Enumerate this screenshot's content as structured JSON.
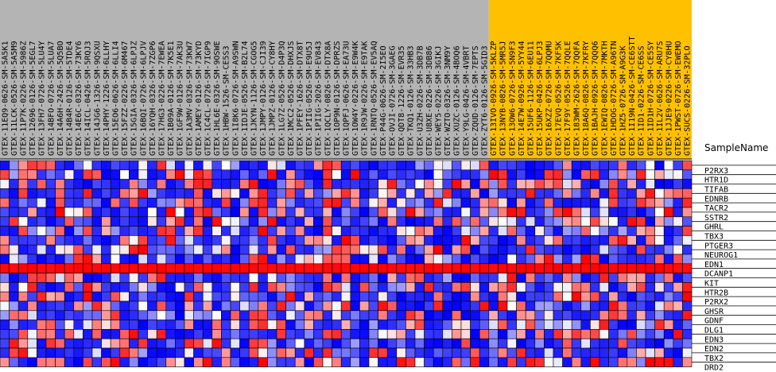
{
  "chart_data": {
    "type": "heatmap",
    "axis_title": "SampleName",
    "colors": {
      "low": "#0000ff",
      "mid": "#ffffff",
      "high": "#ff0000",
      "group1_bg": "#b4b4b4",
      "group2_bg": "#ffc000",
      "grid": "#000000"
    },
    "samples": [
      "GTEX-11EQ9-0626-SM-5A5K1",
      "GTEX-11LCK-0526-SM-5A5M9",
      "GTEX-11P7K-0226-SM-5986Z",
      "GTEX-12696-0126-SM-5EGL7",
      "GTEX-13FH7-0726-SM-5LU4Y",
      "GTEX-14BFO-0726-SM-5LUA7",
      "GTEX-14A6H-2426-SM-5Q5BO",
      "GTEX-14B4R-0126-SM-5TDE4",
      "GTEX-14E6C-0326-SM-73KY6",
      "GTEX-14ICL-0426-SM-5RQJ3",
      "GTEX-14JG6-1326-SM-9QSXU",
      "GTEX-14PHY-1226-SM-6LLHY",
      "GTEX-15EO6-0626-SM-6LLI4",
      "GTEX-15FZZ-0226-SM-6M467",
      "GTEX-15GIA-0326-SM-6LPJZ",
      "GTEX-16BQI-0726-SM-6LPJV",
      "GTEX-16YQH-0326-SM-7ZGP6",
      "GTEX-17HG3-0226-SM-7EWEA",
      "GTEX-1B09A-0126-SM-7K5E1",
      "GTEX-1GF9W-0126-SM-7AK3U",
      "GTEX-1A3MV-0326-SM-73KW7",
      "GTEX-1AMEY-0126-SM-73KYD",
      "GTEX-1C4CL-0726-SM-7IGP9",
      "GTEX-1HL6E-0326-SM-9OSWE",
      "GTEX-1HBW-1526-SM-CE5S3",
      "GTEX-1I8K6-0726-SM-A9SWN",
      "GTEX-1IDJE-0526-SM-B2L74",
      "GTEX-1JKYN-1126-SM-CGOG5",
      "GTEX-1JMPY-0126-SM-CJI39",
      "GTEX-1JMPZ-0126-SM-CY8HY",
      "GTEX-1LG7Z-0526-SM-D4P3Q",
      "GTEX-1MCC2-0526-SM-DHXJS",
      "GTEX-1PFEY-1626-SM-DTX8T",
      "GTEX-1PIIG-0526-SM-E9U5J",
      "GTEX-1PIIG-2026-SM-EV843",
      "GTEX-1QCLY-0826-SM-DTX8A",
      "GTEX-1OP9N-0126-SM-DPRZS",
      "GTEX-1QPFJ-0626-SM-EA73U",
      "GTEX-1OW4Y-0226-SM-E9W4K",
      "GTEX-1R9JW-0226-SM-E9TAK",
      "GTEX-1RNTQ-0526-SM-EV5AQ",
      "GTEX-P44G-0626-SM-2I5EO",
      "GTEX-OVJI-0726-SM-3GAEG",
      "GTEX-QDT8-1226-SM-EVR35",
      "GTEX-TKQ1-0126-SM-33HB3",
      "GTEX-U3ZH-0226-SM-3DB7B",
      "GTEX-U8XE-0226-SM-3DB86",
      "GTEX-WEY5-0226-SM-3GIKJ",
      "GTEX-WZTO-0326-SM-3NM9Y",
      "GTEX-XUZC-0126-SM-4BOQ6",
      "GTEX-Y9LG-0426-SM-4VBRT",
      "GTEX-ZQUD-0126-SM-7EPTS",
      "GTEX-ZYT6-0126-SM-5GID3",
      "GTEX-13IVO-0926-SM-5KLZP",
      "GTEX-13NYB-0826-SM-5MR5J",
      "GTEX-13OW6-0726-SM-5N9F3",
      "GTEX-14E7W-0926-SM-5YY44",
      "GTEX-15UF6-1126-SM-6EU11",
      "GTEX-15UKP-0426-SM-6LPJ3",
      "GTEX-16XZZ-0726-SM-7QQMU",
      "GTEX-17EVQ-0526-SM-7KF5K",
      "GTEX-17F9Y-0526-SM-7QQLE",
      "GTEX-183WM-2626-SM-7QQFA",
      "GTEX-18A6Q-0826-SM-7KFRY",
      "GTEX-1BAJH-0926-SM-7QQQ6",
      "GTEX-1EWIQ-0826-SM-7MKTH",
      "GTEX-1HDOG-0726-SM-A96TN",
      "GTEX-1HZ5-0726-SM-A9G3K",
      "GTEX-1I19N-0426-SM-CE6STT",
      "GTEX-1ID1-0226-SM-CE6SS",
      "GTEX-1ID1H-0726-SM-CE5SY",
      "GTEX-1IL2V-0626-SM-ARU7S",
      "GTEX-1JJE9-0226-SM-CY8HU",
      "GTEX-1PWST-0726-SM-EWEMO",
      "GTEX-SUCS-0226-SM-32PLO"
    ],
    "sample_groups": [
      {
        "count": 53,
        "color": "#b4b4b4"
      },
      {
        "count": 22,
        "color": "#ffc000"
      }
    ],
    "genes": [
      "P2RX3",
      "HTR1D",
      "TIFAB",
      "EDNRB",
      "TACR2",
      "SSTR2",
      "GHRL",
      "TBX3",
      "PTGER3",
      "NEUROG1",
      "EDN1",
      "DCANP1",
      "KIT",
      "HTR2B",
      "P2RX2",
      "GHSR",
      "GDNF",
      "DLG1",
      "EDN3",
      "EDN2",
      "TBX2",
      "DRD2"
    ]
  }
}
